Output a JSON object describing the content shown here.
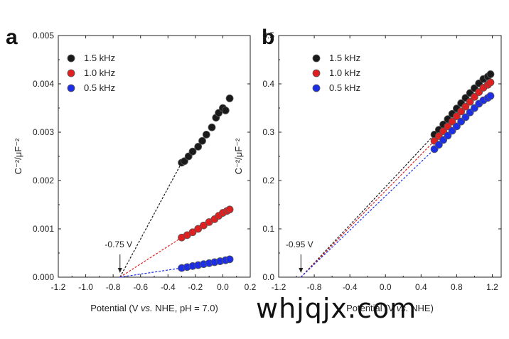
{
  "chart_data": [
    {
      "panel": "a",
      "type": "scatter",
      "xlabel_parts": [
        "Potential (V ",
        "vs.",
        " NHE, pH = 7.0)"
      ],
      "ylabel": "C⁻²/μF⁻²",
      "xlim": [
        -1.2,
        0.2
      ],
      "ylim": [
        0,
        0.005
      ],
      "xticks": [
        -1.2,
        -1.0,
        -0.8,
        -0.6,
        -0.4,
        -0.2,
        0.0,
        0.2
      ],
      "xtick_labels": [
        "-1.2",
        "-1.0",
        "-0.8",
        "-0.6",
        "-0.4",
        "-0.2",
        "0.0",
        "0.2"
      ],
      "yticks": [
        0,
        0.001,
        0.002,
        0.003,
        0.004,
        0.005
      ],
      "ytick_labels": [
        "0.000",
        "0.001",
        "0.002",
        "0.003",
        "0.004",
        "0.005"
      ],
      "legend_position": "top-left",
      "annotation": {
        "text": "-0.75 V",
        "x": -0.75
      },
      "series": [
        {
          "name": "1.5 kHz",
          "color": "#1a1a1a",
          "points": [
            [
              -0.3,
              0.00237
            ],
            [
              -0.28,
              0.0024
            ],
            [
              -0.25,
              0.0025
            ],
            [
              -0.22,
              0.0026
            ],
            [
              -0.18,
              0.0027
            ],
            [
              -0.15,
              0.00282
            ],
            [
              -0.12,
              0.00295
            ],
            [
              -0.08,
              0.0031
            ],
            [
              -0.05,
              0.0033
            ],
            [
              -0.03,
              0.0034
            ],
            [
              0.0,
              0.0035
            ],
            [
              0.02,
              0.00345
            ],
            [
              0.05,
              0.0037
            ]
          ],
          "fit_from": [
            -0.75,
            0.0
          ],
          "fit_to": [
            -0.3,
            0.00237
          ]
        },
        {
          "name": "1.0 kHz",
          "color": "#e02020",
          "points": [
            [
              -0.3,
              0.00082
            ],
            [
              -0.26,
              0.00087
            ],
            [
              -0.22,
              0.00093
            ],
            [
              -0.18,
              0.001
            ],
            [
              -0.14,
              0.00107
            ],
            [
              -0.1,
              0.00114
            ],
            [
              -0.06,
              0.0012
            ],
            [
              -0.03,
              0.00127
            ],
            [
              0.0,
              0.00133
            ],
            [
              0.03,
              0.00137
            ],
            [
              0.05,
              0.0014
            ]
          ],
          "fit_from": [
            -0.75,
            0.0
          ],
          "fit_to": [
            -0.3,
            0.00082
          ]
        },
        {
          "name": "0.5 kHz",
          "color": "#1c2ee6",
          "points": [
            [
              -0.3,
              0.00019
            ],
            [
              -0.26,
              0.00021
            ],
            [
              -0.22,
              0.00023
            ],
            [
              -0.18,
              0.00025
            ],
            [
              -0.14,
              0.00027
            ],
            [
              -0.1,
              0.00029
            ],
            [
              -0.06,
              0.00031
            ],
            [
              -0.02,
              0.00033
            ],
            [
              0.02,
              0.00035
            ],
            [
              0.05,
              0.00037
            ]
          ],
          "fit_from": [
            -0.75,
            0.0
          ],
          "fit_to": [
            -0.3,
            0.00019
          ]
        }
      ]
    },
    {
      "panel": "b",
      "type": "scatter",
      "xlabel_parts": [
        "Potential (V ",
        "vs.",
        " NHE)"
      ],
      "ylabel": "C⁻²/μF⁻²",
      "xlim": [
        -1.2,
        1.3
      ],
      "ylim": [
        0,
        0.5
      ],
      "xticks": [
        -1.2,
        -0.8,
        -0.4,
        0.0,
        0.4,
        0.8,
        1.2
      ],
      "xtick_labels": [
        "-1.2",
        "-0.8",
        "-0.4",
        "0.0",
        "0.4",
        "0.8",
        "1.2"
      ],
      "yticks": [
        0,
        0.1,
        0.2,
        0.3,
        0.4,
        0.5
      ],
      "ytick_labels": [
        "0.0",
        "0.1",
        "0.2",
        "0.3",
        "0.4",
        "0.5"
      ],
      "legend_position": "top-left",
      "annotation": {
        "text": "-0.95 V",
        "x": -0.95
      },
      "series": [
        {
          "name": "1.5 kHz",
          "color": "#1a1a1a",
          "points": [
            [
              0.55,
              0.295
            ],
            [
              0.6,
              0.305
            ],
            [
              0.65,
              0.316
            ],
            [
              0.7,
              0.327
            ],
            [
              0.75,
              0.338
            ],
            [
              0.8,
              0.349
            ],
            [
              0.85,
              0.36
            ],
            [
              0.9,
              0.371
            ],
            [
              0.95,
              0.381
            ],
            [
              1.0,
              0.391
            ],
            [
              1.05,
              0.401
            ],
            [
              1.1,
              0.41
            ],
            [
              1.15,
              0.415
            ],
            [
              1.18,
              0.42
            ]
          ],
          "fit_from": [
            -0.95,
            0.0
          ],
          "fit_to": [
            0.55,
            0.295
          ]
        },
        {
          "name": "1.0 kHz",
          "color": "#e02020",
          "points": [
            [
              0.55,
              0.282
            ],
            [
              0.6,
              0.292
            ],
            [
              0.65,
              0.302
            ],
            [
              0.7,
              0.312
            ],
            [
              0.75,
              0.322
            ],
            [
              0.8,
              0.333
            ],
            [
              0.85,
              0.343
            ],
            [
              0.9,
              0.353
            ],
            [
              0.95,
              0.363
            ],
            [
              1.0,
              0.373
            ],
            [
              1.05,
              0.383
            ],
            [
              1.1,
              0.392
            ],
            [
              1.15,
              0.398
            ],
            [
              1.18,
              0.403
            ]
          ],
          "fit_from": [
            -0.95,
            0.0
          ],
          "fit_to": [
            0.55,
            0.282
          ]
        },
        {
          "name": "0.5 kHz",
          "color": "#1c2ee6",
          "points": [
            [
              0.55,
              0.265
            ],
            [
              0.6,
              0.274
            ],
            [
              0.65,
              0.284
            ],
            [
              0.7,
              0.293
            ],
            [
              0.75,
              0.303
            ],
            [
              0.8,
              0.312
            ],
            [
              0.85,
              0.322
            ],
            [
              0.9,
              0.331
            ],
            [
              0.95,
              0.341
            ],
            [
              1.0,
              0.35
            ],
            [
              1.05,
              0.359
            ],
            [
              1.1,
              0.366
            ],
            [
              1.15,
              0.371
            ],
            [
              1.18,
              0.375
            ]
          ],
          "fit_from": [
            -0.95,
            0.0
          ],
          "fit_to": [
            0.55,
            0.265
          ]
        }
      ]
    }
  ],
  "panels": {
    "a": "a",
    "b": "b"
  },
  "watermark": {
    "text": "whjqjx.com",
    "sub": ""
  }
}
